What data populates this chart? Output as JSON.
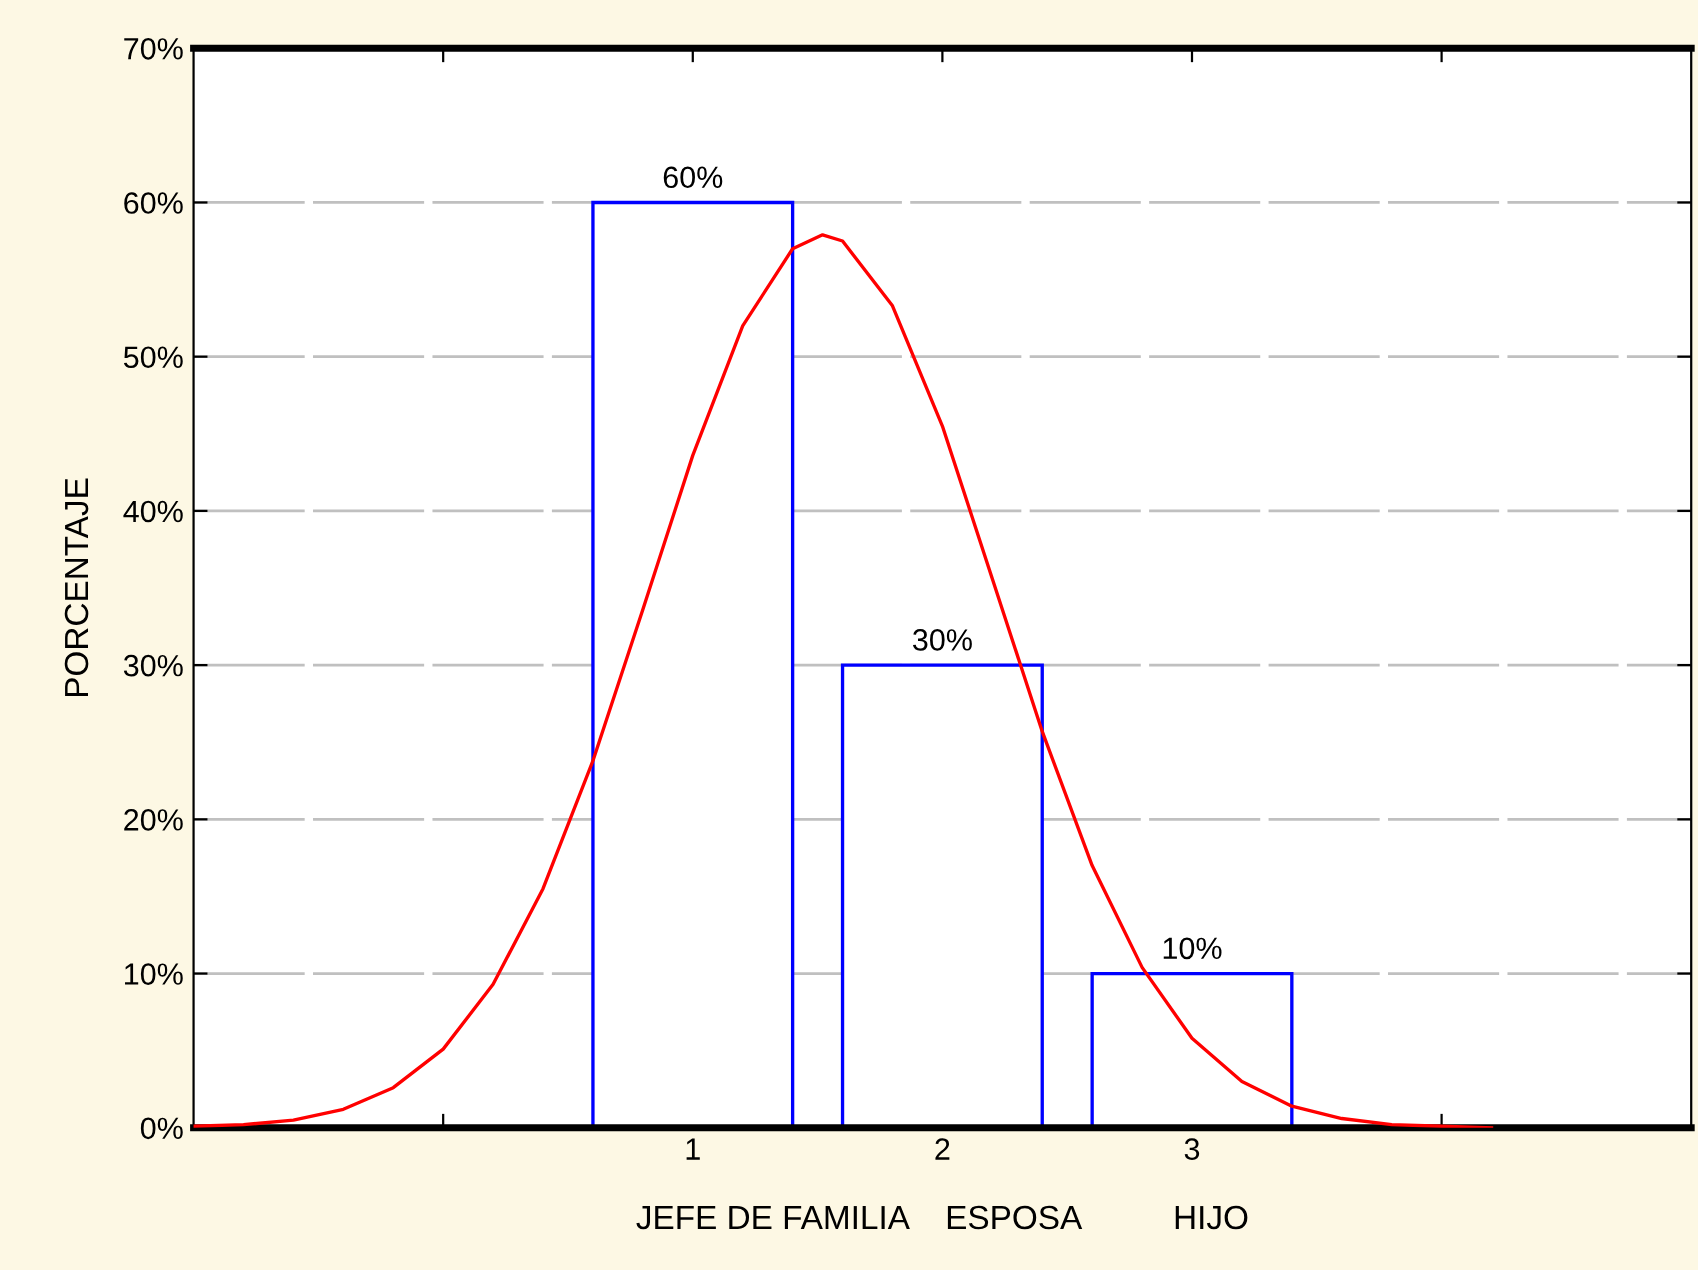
{
  "chart_data": {
    "type": "bar",
    "ylabel": "PORCENTAJE",
    "xlabel": "JEFE DE FAMILIA    ESPOSA          HIJO",
    "x": [
      1,
      2,
      3
    ],
    "xlim": [
      -1,
      5
    ],
    "xticks": [
      {
        "value": 0,
        "label": null
      },
      1,
      2,
      3,
      {
        "value": 4,
        "label": null
      }
    ],
    "ylim": [
      0,
      70
    ],
    "yticks": [
      {
        "value": 0,
        "label": "0%"
      },
      {
        "value": 10,
        "label": "10%"
      },
      {
        "value": 20,
        "label": "20%"
      },
      {
        "value": 30,
        "label": "30%"
      },
      {
        "value": 40,
        "label": "40%"
      },
      {
        "value": 50,
        "label": "50%"
      },
      {
        "value": 60,
        "label": "60%"
      },
      {
        "value": 70,
        "label": "70%"
      }
    ],
    "grid": "y",
    "series": [
      {
        "color": "#0000ff",
        "values": [
          60,
          30,
          10
        ],
        "value_labels": [
          "60%",
          "30%",
          "10%"
        ]
      },
      {
        "type": "line",
        "color": "#ff0000",
        "x": [
          -1.0,
          -0.8,
          -0.6,
          -0.4,
          -0.2,
          0.0,
          0.2,
          0.4,
          0.6,
          0.8,
          1.0,
          1.2,
          1.4,
          1.52,
          1.6,
          1.8,
          2.0,
          2.2,
          2.4,
          2.6,
          2.8,
          3.0,
          3.2,
          3.4,
          3.6,
          3.8,
          4.0,
          4.2
        ],
        "values": [
          0.1,
          0.2,
          0.5,
          1.2,
          2.6,
          5.1,
          9.3,
          15.5,
          23.8,
          33.6,
          43.6,
          52.0,
          57.0,
          57.9,
          57.5,
          53.3,
          45.5,
          35.6,
          25.7,
          17.0,
          10.4,
          5.8,
          3.0,
          1.4,
          0.6,
          0.2,
          0.1,
          0.0
        ]
      }
    ]
  }
}
